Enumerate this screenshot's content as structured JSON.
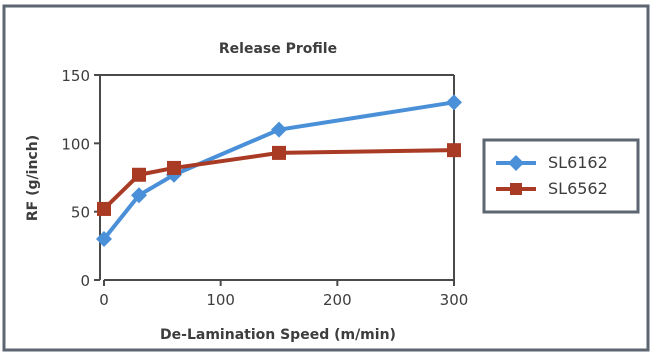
{
  "colors": {
    "frame": "#5c6670",
    "axis": "#4a4a4a",
    "text": "#3d3d3d",
    "sl6162": "#4a90d9",
    "sl6562": "#a93a24"
  },
  "chart_data": {
    "type": "line",
    "title": "Release Profile",
    "xlabel": "De-Lamination Speed (m/min)",
    "ylabel": "RF (g/inch)",
    "xlim": [
      0,
      300
    ],
    "ylim": [
      0,
      150
    ],
    "x_ticks": [
      "0",
      "100",
      "200",
      "300"
    ],
    "y_ticks": [
      "0",
      "50",
      "100",
      "150"
    ],
    "grid": false,
    "legend_position": "right",
    "series": [
      {
        "name": "SL6162",
        "marker": "diamond",
        "x": [
          0,
          30,
          60,
          150,
          300
        ],
        "y": [
          30,
          62,
          77,
          110,
          130
        ]
      },
      {
        "name": "SL6562",
        "marker": "square",
        "x": [
          0,
          30,
          60,
          150,
          300
        ],
        "y": [
          52,
          77,
          82,
          93,
          95
        ]
      }
    ]
  }
}
